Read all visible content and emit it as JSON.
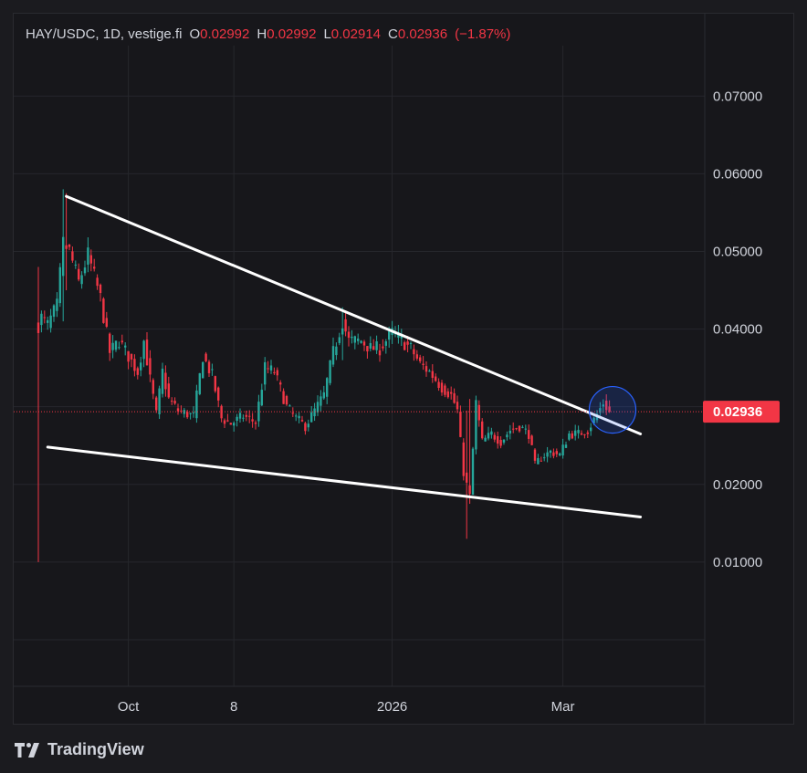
{
  "header": {
    "symbol": "HAY/USDC, 1D, vestige.fi",
    "o_label": "O",
    "o_value": "0.02992",
    "h_label": "H",
    "h_value": "0.02992",
    "l_label": "L",
    "l_value": "0.02914",
    "c_label": "C",
    "c_value": "0.02936",
    "change": "(−1.87%)"
  },
  "branding": {
    "name": "TradingView"
  },
  "colors": {
    "up": "#26a69a",
    "down": "#f23645",
    "trendline": "#ffffff",
    "grid": "#26272c",
    "circle": "#2962ff"
  },
  "chart_data": {
    "type": "candlestick",
    "title": "HAY/USDC, 1D, vestige.fi",
    "y_ticks": [
      "0.07000",
      "0.06000",
      "0.05000",
      "0.04000",
      "0.02000",
      "0.01000"
    ],
    "y_tick_values": [
      0.07,
      0.06,
      0.05,
      0.04,
      0.02,
      0.01
    ],
    "x_ticks": [
      "Oct",
      "8",
      "2026",
      "Mar"
    ],
    "ylim": [
      -0.006,
      0.0765
    ],
    "last_price": "0.02936",
    "last_price_value": 0.02936,
    "grid": true,
    "series_path": [
      {
        "day": 0,
        "price": 0.0405
      },
      {
        "day": 1,
        "price": 0.0415
      },
      {
        "day": 3,
        "price": 0.0405
      },
      {
        "day": 6,
        "price": 0.043
      },
      {
        "day": 8,
        "price": 0.051
      },
      {
        "day": 10,
        "price": 0.05
      },
      {
        "day": 13,
        "price": 0.046
      },
      {
        "day": 16,
        "price": 0.0495
      },
      {
        "day": 20,
        "price": 0.044
      },
      {
        "day": 23,
        "price": 0.037
      },
      {
        "day": 26,
        "price": 0.0385
      },
      {
        "day": 29,
        "price": 0.0365
      },
      {
        "day": 32,
        "price": 0.0345
      },
      {
        "day": 34,
        "price": 0.0385
      },
      {
        "day": 36,
        "price": 0.0335
      },
      {
        "day": 38,
        "price": 0.029
      },
      {
        "day": 40,
        "price": 0.0345
      },
      {
        "day": 42,
        "price": 0.031
      },
      {
        "day": 45,
        "price": 0.0295
      },
      {
        "day": 50,
        "price": 0.0288
      },
      {
        "day": 53,
        "price": 0.0365
      },
      {
        "day": 56,
        "price": 0.034
      },
      {
        "day": 59,
        "price": 0.0285
      },
      {
        "day": 62,
        "price": 0.0278
      },
      {
        "day": 66,
        "price": 0.0288
      },
      {
        "day": 70,
        "price": 0.028
      },
      {
        "day": 73,
        "price": 0.035
      },
      {
        "day": 76,
        "price": 0.0345
      },
      {
        "day": 80,
        "price": 0.03
      },
      {
        "day": 83,
        "price": 0.0285
      },
      {
        "day": 86,
        "price": 0.0275
      },
      {
        "day": 89,
        "price": 0.0295
      },
      {
        "day": 92,
        "price": 0.0315
      },
      {
        "day": 95,
        "price": 0.037
      },
      {
        "day": 98,
        "price": 0.041
      },
      {
        "day": 100,
        "price": 0.0385
      },
      {
        "day": 104,
        "price": 0.0385
      },
      {
        "day": 107,
        "price": 0.0375
      },
      {
        "day": 110,
        "price": 0.0375
      },
      {
        "day": 114,
        "price": 0.0395
      },
      {
        "day": 117,
        "price": 0.0385
      },
      {
        "day": 120,
        "price": 0.0375
      },
      {
        "day": 123,
        "price": 0.0355
      },
      {
        "day": 126,
        "price": 0.0345
      },
      {
        "day": 130,
        "price": 0.0325
      },
      {
        "day": 133,
        "price": 0.0315
      },
      {
        "day": 135,
        "price": 0.0295
      },
      {
        "day": 137,
        "price": 0.0215
      },
      {
        "day": 139,
        "price": 0.0185
      },
      {
        "day": 141,
        "price": 0.0305
      },
      {
        "day": 143,
        "price": 0.0255
      },
      {
        "day": 146,
        "price": 0.0265
      },
      {
        "day": 149,
        "price": 0.0255
      },
      {
        "day": 152,
        "price": 0.027
      },
      {
        "day": 155,
        "price": 0.0275
      },
      {
        "day": 158,
        "price": 0.0265
      },
      {
        "day": 160,
        "price": 0.0225
      },
      {
        "day": 162,
        "price": 0.0235
      },
      {
        "day": 165,
        "price": 0.0242
      },
      {
        "day": 168,
        "price": 0.0238
      },
      {
        "day": 171,
        "price": 0.0265
      },
      {
        "day": 174,
        "price": 0.0265
      },
      {
        "day": 177,
        "price": 0.027
      },
      {
        "day": 180,
        "price": 0.029
      },
      {
        "day": 182,
        "price": 0.0305
      },
      {
        "day": 184,
        "price": 0.0294
      }
    ],
    "spikes": [
      {
        "day": 0,
        "low": 0.01,
        "high": 0.048
      },
      {
        "day": 8,
        "low": 0.041,
        "high": 0.058
      },
      {
        "day": 9,
        "low": 0.045,
        "high": 0.0575
      },
      {
        "day": 98,
        "low": 0.036,
        "high": 0.0428
      },
      {
        "day": 138,
        "low": 0.013,
        "high": 0.0295
      },
      {
        "day": 139,
        "low": 0.0175,
        "high": 0.031
      }
    ],
    "trendlines": [
      {
        "name": "upper",
        "points": [
          {
            "day": 9,
            "price": 0.0571
          },
          {
            "day": 194,
            "price": 0.0265
          }
        ]
      },
      {
        "name": "lower",
        "points": [
          {
            "day": 3,
            "price": 0.0248
          },
          {
            "day": 194,
            "price": 0.0158
          }
        ]
      }
    ],
    "highlight_circle": {
      "day": 185,
      "price": 0.0296,
      "radius_price": 0.003
    }
  }
}
